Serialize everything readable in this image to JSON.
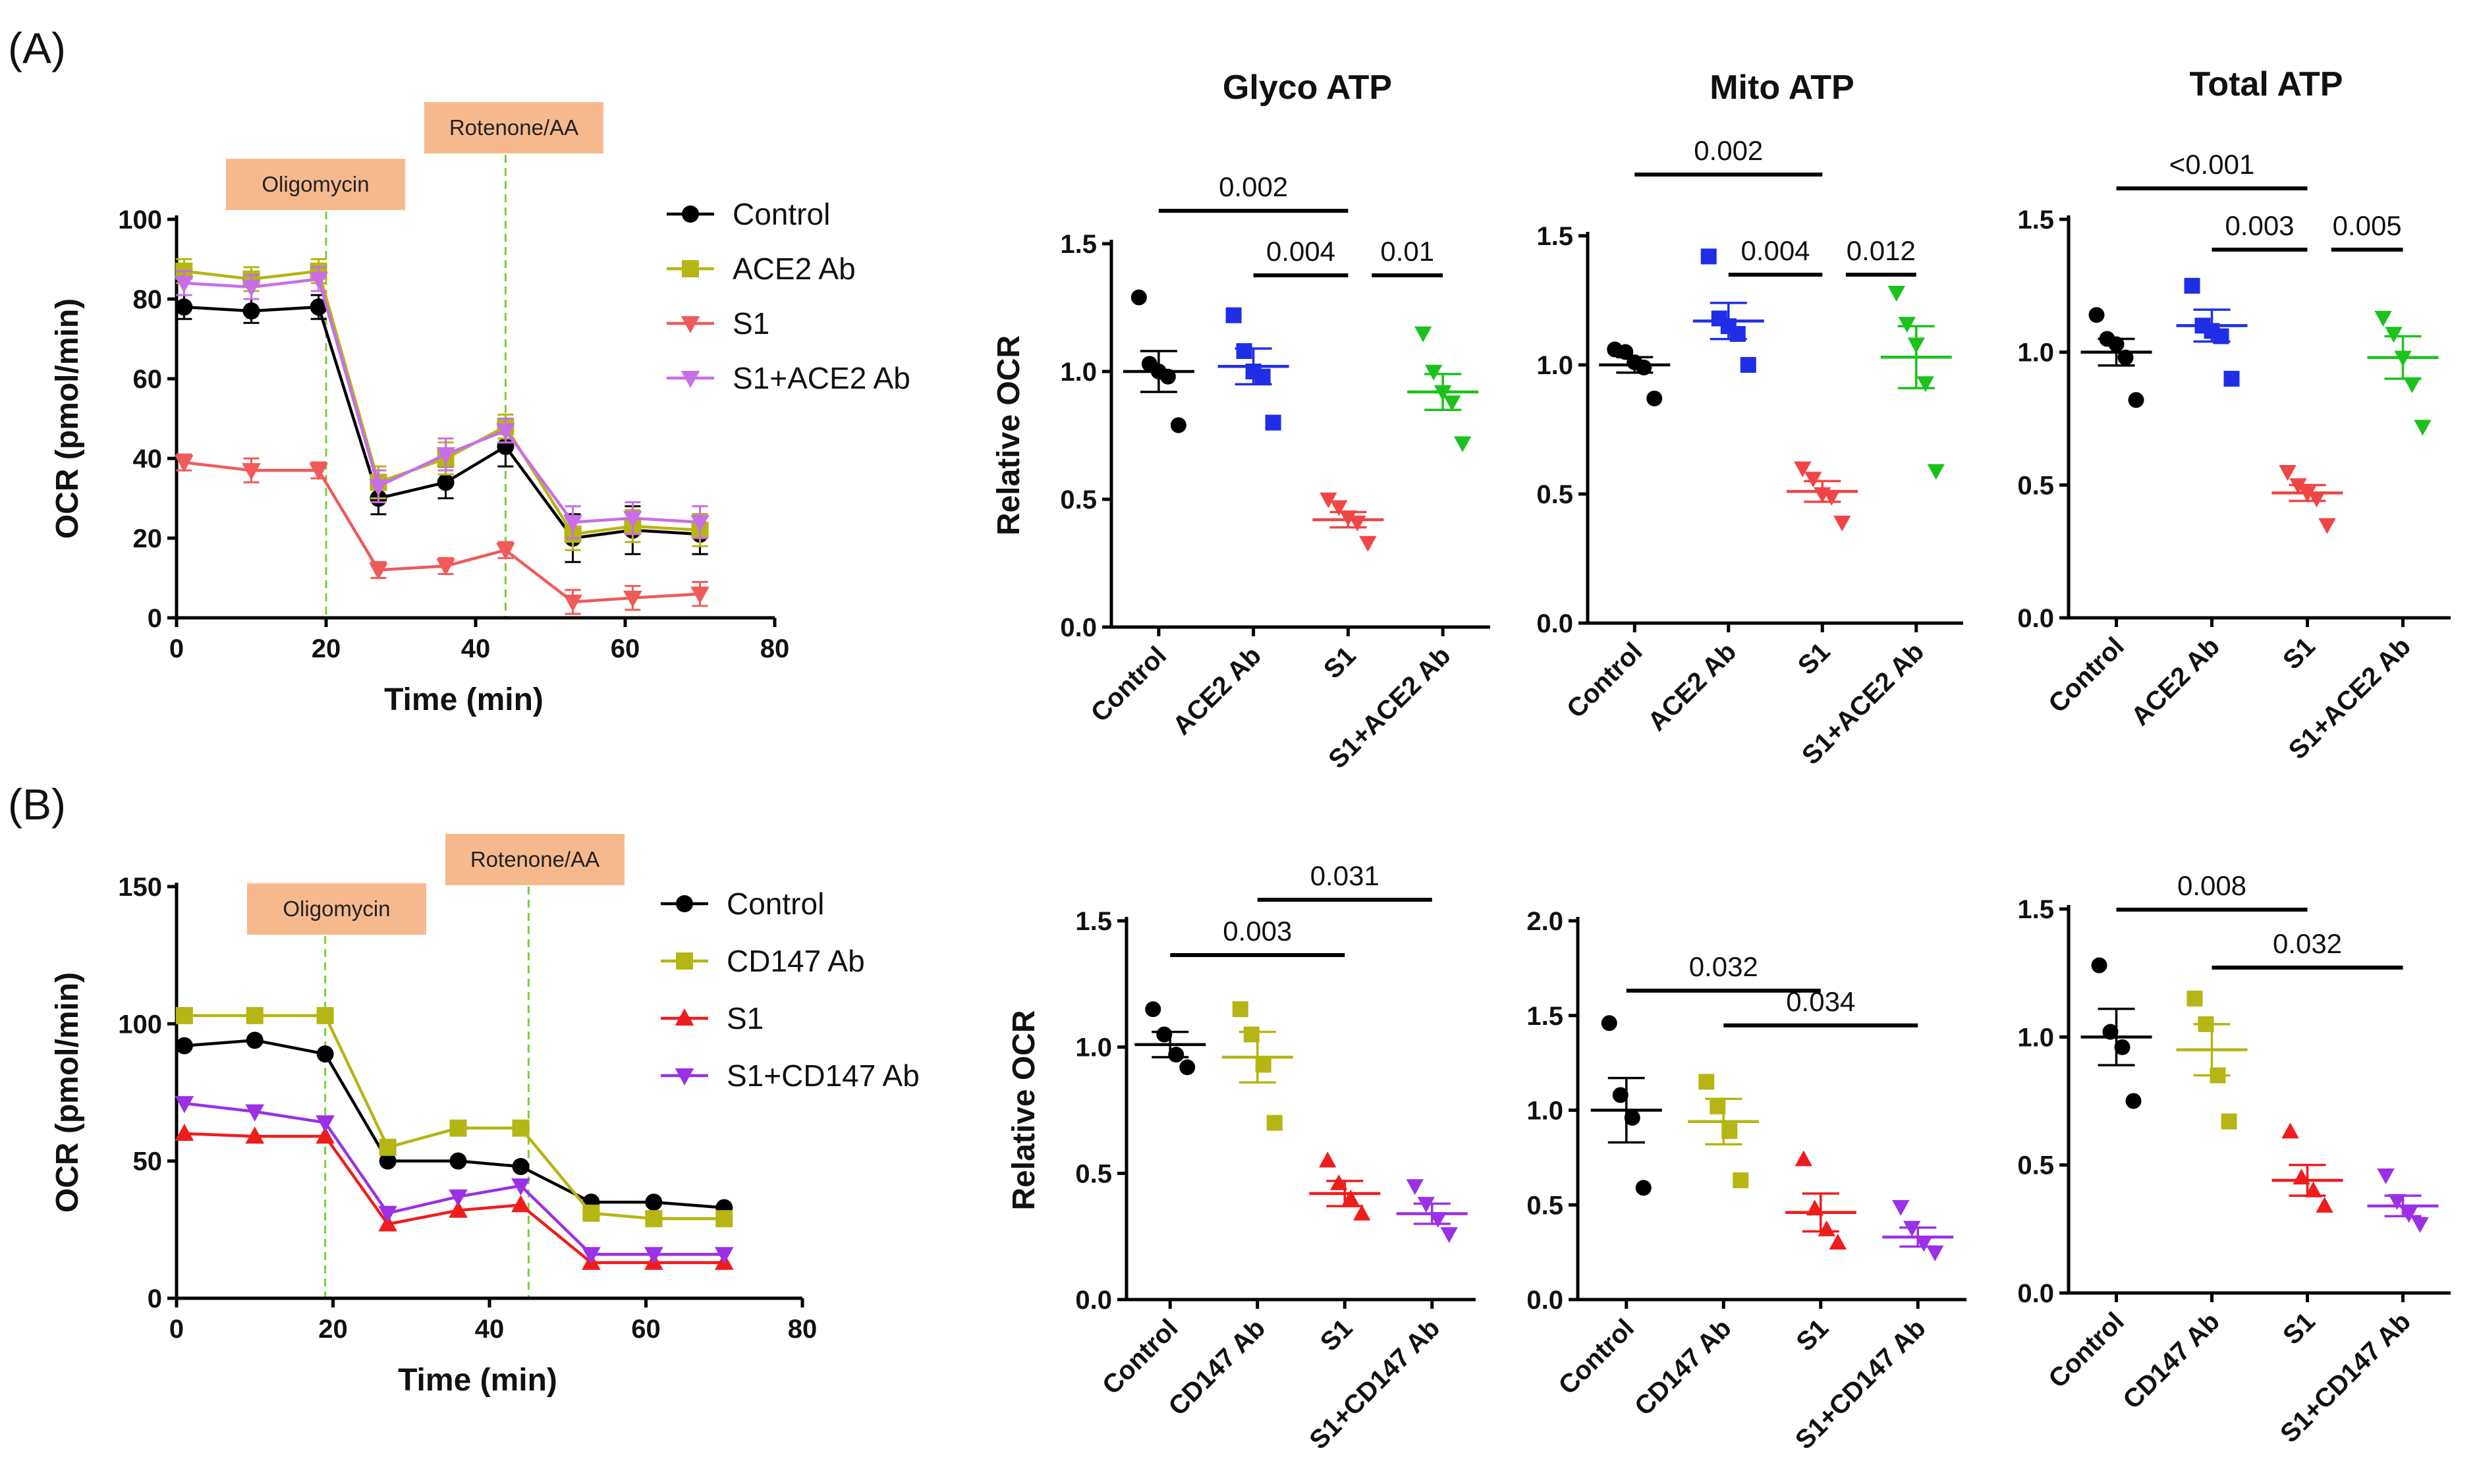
{
  "figure": {
    "panel_labels": [
      "(A)",
      "(B)"
    ],
    "colors": {
      "Control": "#000000",
      "ACE2 Ab": "#b5b514",
      "S1": "#f05a5a",
      "S1+ACE2 Ab": "#c86ee6",
      "CD147 Ab": "#b5b514",
      "S1+CD147 Ab": "#9b30e6",
      "ACE2 Ab (ATP)": "#1f2ee6",
      "S1+ACE2 Ab (ATP)": "#1cc21c",
      "S1 (ATP)": "#f04545",
      "injection_box": "#f6b98e",
      "injection_line": "#7ccf3a"
    }
  },
  "chart_data": [
    {
      "id": "A-ocr",
      "panel": "(A)",
      "type": "line",
      "xlabel": "Time (min)",
      "ylabel": "OCR (pmol/min)",
      "xlim": [
        0,
        80
      ],
      "ylim": [
        0,
        100
      ],
      "xticks": [
        0,
        20,
        40,
        60,
        80
      ],
      "yticks": [
        0,
        20,
        40,
        60,
        80,
        100
      ],
      "injections": [
        {
          "label": "Oligomycin",
          "x": 20
        },
        {
          "label": "Rotenone/AA",
          "x": 44
        }
      ],
      "x": [
        1,
        10,
        19,
        27,
        36,
        44,
        53,
        61,
        70
      ],
      "series": [
        {
          "name": "Control",
          "marker": "circle",
          "color": "#000000",
          "values": [
            78,
            77,
            78,
            30,
            34,
            43,
            20,
            22,
            21
          ],
          "err": [
            3,
            3,
            3,
            4,
            4,
            5,
            6,
            6,
            5
          ]
        },
        {
          "name": "ACE2 Ab",
          "marker": "square",
          "color": "#b5b514",
          "values": [
            87,
            85,
            87,
            34,
            40,
            48,
            21,
            23,
            22
          ],
          "err": [
            3,
            3,
            3,
            4,
            4,
            3,
            4,
            4,
            4
          ]
        },
        {
          "name": "S1",
          "marker": "tri-down",
          "color": "#f05a5a",
          "values": [
            39,
            37,
            37,
            12,
            13,
            17,
            4,
            5,
            6
          ],
          "err": [
            2,
            3,
            2,
            2,
            2,
            2,
            3,
            3,
            3
          ]
        },
        {
          "name": "S1+ACE2 Ab",
          "marker": "tri-down",
          "color": "#c86ee6",
          "values": [
            84,
            83,
            85,
            33,
            41,
            47,
            24,
            25,
            24
          ],
          "err": [
            3,
            3,
            3,
            4,
            4,
            3,
            4,
            4,
            4
          ]
        }
      ]
    },
    {
      "id": "A-glyco",
      "panel": "(A)",
      "type": "scatter",
      "title": "Glyco ATP",
      "ylabel": "Relative OCR",
      "ylim": [
        0,
        1.5
      ],
      "yticks": [
        0.0,
        0.5,
        1.0,
        1.5
      ],
      "categories": [
        "Control",
        "ACE2 Ab",
        "S1",
        "S1+ACE2 Ab"
      ],
      "groups": [
        {
          "name": "Control",
          "marker": "circle",
          "color": "#000000",
          "points": [
            1.29,
            1.03,
            1.0,
            0.98,
            0.79
          ],
          "mean": 1.0,
          "sem": 0.08
        },
        {
          "name": "ACE2 Ab",
          "marker": "square",
          "color": "#1f2ee6",
          "points": [
            1.22,
            1.08,
            1.0,
            0.98,
            0.8
          ],
          "mean": 1.02,
          "sem": 0.07
        },
        {
          "name": "S1",
          "marker": "tri-down",
          "color": "#f04545",
          "points": [
            0.5,
            0.47,
            0.43,
            0.41,
            0.33
          ],
          "mean": 0.42,
          "sem": 0.03
        },
        {
          "name": "S1+ACE2 Ab",
          "marker": "tri-down",
          "color": "#1cc21c",
          "points": [
            1.15,
            1.0,
            0.92,
            0.88,
            0.72
          ],
          "mean": 0.92,
          "sem": 0.07
        }
      ],
      "comparisons": [
        {
          "label": "0.002",
          "from": 0,
          "to": 2,
          "level": 1
        },
        {
          "label": "0.004",
          "from": 1,
          "to": 2,
          "level": 0
        },
        {
          "label": "0.01",
          "from": 2.25,
          "to": 3,
          "level": 0
        }
      ]
    },
    {
      "id": "A-mito",
      "panel": "(A)",
      "type": "scatter",
      "title": "Mito ATP",
      "ylabel": "",
      "ylim": [
        0,
        1.5
      ],
      "yticks": [
        0.0,
        0.5,
        1.0,
        1.5
      ],
      "categories": [
        "Control",
        "ACE2 Ab",
        "S1",
        "S1+ACE2 Ab"
      ],
      "groups": [
        {
          "name": "Control",
          "marker": "circle",
          "color": "#000000",
          "points": [
            1.06,
            1.05,
            1.01,
            0.99,
            0.87
          ],
          "mean": 1.0,
          "sem": 0.03
        },
        {
          "name": "ACE2 Ab",
          "marker": "square",
          "color": "#1f2ee6",
          "points": [
            1.42,
            1.18,
            1.15,
            1.12,
            1.0
          ],
          "mean": 1.17,
          "sem": 0.07
        },
        {
          "name": "S1",
          "marker": "tri-down",
          "color": "#f04545",
          "points": [
            0.6,
            0.56,
            0.5,
            0.49,
            0.39
          ],
          "mean": 0.51,
          "sem": 0.04
        },
        {
          "name": "S1+ACE2 Ab",
          "marker": "tri-down",
          "color": "#1cc21c",
          "points": [
            1.28,
            1.16,
            1.08,
            0.93,
            0.59
          ],
          "mean": 1.03,
          "sem": 0.12
        }
      ],
      "comparisons": [
        {
          "label": "0.002",
          "from": 0,
          "to": 2,
          "level": 1
        },
        {
          "label": "0.004",
          "from": 1,
          "to": 2,
          "level": 0
        },
        {
          "label": "0.012",
          "from": 2.25,
          "to": 3,
          "level": 0
        }
      ]
    },
    {
      "id": "A-total",
      "panel": "(A)",
      "type": "scatter",
      "title": "Total ATP",
      "ylabel": "",
      "ylim": [
        0,
        1.5
      ],
      "yticks": [
        0.0,
        0.5,
        1.0,
        1.5
      ],
      "categories": [
        "Control",
        "ACE2 Ab",
        "S1",
        "S1+ACE2 Ab"
      ],
      "groups": [
        {
          "name": "Control",
          "marker": "circle",
          "color": "#000000",
          "points": [
            1.14,
            1.05,
            1.03,
            0.98,
            0.82
          ],
          "mean": 1.0,
          "sem": 0.05
        },
        {
          "name": "ACE2 Ab",
          "marker": "square",
          "color": "#1f2ee6",
          "points": [
            1.25,
            1.1,
            1.08,
            1.06,
            0.9
          ],
          "mean": 1.1,
          "sem": 0.06
        },
        {
          "name": "S1",
          "marker": "tri-down",
          "color": "#f04545",
          "points": [
            0.55,
            0.5,
            0.47,
            0.45,
            0.35
          ],
          "mean": 0.47,
          "sem": 0.03
        },
        {
          "name": "S1+ACE2 Ab",
          "marker": "tri-down",
          "color": "#1cc21c",
          "points": [
            1.13,
            1.07,
            0.98,
            0.88,
            0.72
          ],
          "mean": 0.98,
          "sem": 0.08
        }
      ],
      "comparisons": [
        {
          "label": "<0.001",
          "from": 0,
          "to": 2,
          "level": 1
        },
        {
          "label": "0.003",
          "from": 1,
          "to": 2,
          "level": 0
        },
        {
          "label": "0.005",
          "from": 2.25,
          "to": 3,
          "level": 0
        }
      ]
    },
    {
      "id": "B-ocr",
      "panel": "(B)",
      "type": "line",
      "xlabel": "Time (min)",
      "ylabel": "OCR (pmol/min)",
      "xlim": [
        0,
        80
      ],
      "ylim": [
        0,
        150
      ],
      "xticks": [
        0,
        20,
        40,
        60,
        80
      ],
      "yticks": [
        0,
        50,
        100,
        150
      ],
      "injections": [
        {
          "label": "Oligomycin",
          "x": 19
        },
        {
          "label": "Rotenone/AA",
          "x": 45
        }
      ],
      "x": [
        1,
        10,
        19,
        27,
        36,
        44,
        53,
        61,
        70
      ],
      "series": [
        {
          "name": "Control",
          "marker": "circle",
          "color": "#000000",
          "values": [
            92,
            94,
            89,
            50,
            50,
            48,
            35,
            35,
            33
          ]
        },
        {
          "name": "CD147 Ab",
          "marker": "square",
          "color": "#b5b514",
          "values": [
            103,
            103,
            103,
            55,
            62,
            62,
            31,
            29,
            29
          ]
        },
        {
          "name": "S1",
          "marker": "tri-up",
          "color": "#f01c1c",
          "values": [
            60,
            59,
            59,
            27,
            32,
            34,
            13,
            13,
            13
          ]
        },
        {
          "name": "S1+CD147 Ab",
          "marker": "tri-down",
          "color": "#9b30e6",
          "values": [
            71,
            68,
            64,
            31,
            37,
            41,
            16,
            16,
            16
          ]
        }
      ]
    },
    {
      "id": "B-glyco",
      "panel": "(B)",
      "type": "scatter",
      "title": "",
      "ylabel": "Relative OCR",
      "ylim": [
        0,
        1.5
      ],
      "yticks": [
        0.0,
        0.5,
        1.0,
        1.5
      ],
      "categories": [
        "Control",
        "CD147 Ab",
        "S1",
        "S1+CD147 Ab"
      ],
      "groups": [
        {
          "name": "Control",
          "marker": "circle",
          "color": "#000000",
          "points": [
            1.15,
            1.05,
            0.97,
            0.92
          ],
          "mean": 1.01,
          "sem": 0.05
        },
        {
          "name": "CD147 Ab",
          "marker": "square",
          "color": "#b5b514",
          "points": [
            1.15,
            1.05,
            0.93,
            0.7
          ],
          "mean": 0.96,
          "sem": 0.1
        },
        {
          "name": "S1",
          "marker": "tri-up",
          "color": "#f01c1c",
          "points": [
            0.55,
            0.46,
            0.4,
            0.34
          ],
          "mean": 0.42,
          "sem": 0.05
        },
        {
          "name": "S1+CD147 Ab",
          "marker": "tri-down",
          "color": "#9b30e6",
          "points": [
            0.45,
            0.38,
            0.32,
            0.26
          ],
          "mean": 0.34,
          "sem": 0.04
        }
      ],
      "comparisons": [
        {
          "label": "0.003",
          "from": 0,
          "to": 2,
          "level": 0
        },
        {
          "label": "0.031",
          "from": 1,
          "to": 3,
          "level": 1
        }
      ]
    },
    {
      "id": "B-mito",
      "panel": "(B)",
      "type": "scatter",
      "title": "",
      "ylabel": "",
      "ylim": [
        0,
        2.0
      ],
      "yticks": [
        0.0,
        0.5,
        1.0,
        1.5,
        2.0
      ],
      "categories": [
        "Control",
        "CD147 Ab",
        "S1",
        "S1+CD147 Ab"
      ],
      "groups": [
        {
          "name": "Control",
          "marker": "circle",
          "color": "#000000",
          "points": [
            1.46,
            1.08,
            0.96,
            0.59
          ],
          "mean": 1.0,
          "sem": 0.17
        },
        {
          "name": "CD147 Ab",
          "marker": "square",
          "color": "#b5b514",
          "points": [
            1.15,
            1.02,
            0.89,
            0.63
          ],
          "mean": 0.94,
          "sem": 0.12
        },
        {
          "name": "S1",
          "marker": "tri-up",
          "color": "#f01c1c",
          "points": [
            0.74,
            0.48,
            0.37,
            0.3
          ],
          "mean": 0.46,
          "sem": 0.1
        },
        {
          "name": "S1+CD147 Ab",
          "marker": "tri-down",
          "color": "#9b30e6",
          "points": [
            0.49,
            0.38,
            0.3,
            0.25
          ],
          "mean": 0.33,
          "sem": 0.05
        }
      ],
      "comparisons": [
        {
          "label": "0.032",
          "from": 0,
          "to": 2,
          "level": 0
        },
        {
          "label": "0.034",
          "from": 1,
          "to": 3,
          "level": -0.3
        }
      ]
    },
    {
      "id": "B-total",
      "panel": "(B)",
      "type": "scatter",
      "title": "",
      "ylabel": "",
      "ylim": [
        0,
        1.5
      ],
      "yticks": [
        0.0,
        0.5,
        1.0,
        1.5
      ],
      "categories": [
        "Control",
        "CD147 Ab",
        "S1",
        "S1+CD147 Ab"
      ],
      "groups": [
        {
          "name": "Control",
          "marker": "circle",
          "color": "#000000",
          "points": [
            1.28,
            1.02,
            0.96,
            0.75
          ],
          "mean": 1.0,
          "sem": 0.11
        },
        {
          "name": "CD147 Ab",
          "marker": "square",
          "color": "#b5b514",
          "points": [
            1.15,
            1.05,
            0.85,
            0.67
          ],
          "mean": 0.95,
          "sem": 0.1
        },
        {
          "name": "S1",
          "marker": "tri-up",
          "color": "#f01c1c",
          "points": [
            0.63,
            0.45,
            0.4,
            0.34
          ],
          "mean": 0.44,
          "sem": 0.06
        },
        {
          "name": "S1+CD147 Ab",
          "marker": "tri-down",
          "color": "#9b30e6",
          "points": [
            0.46,
            0.36,
            0.31,
            0.27
          ],
          "mean": 0.34,
          "sem": 0.04
        }
      ],
      "comparisons": [
        {
          "label": "0.008",
          "from": 0,
          "to": 2,
          "level": 1
        },
        {
          "label": "0.032",
          "from": 1,
          "to": 3,
          "level": 0
        }
      ]
    }
  ]
}
